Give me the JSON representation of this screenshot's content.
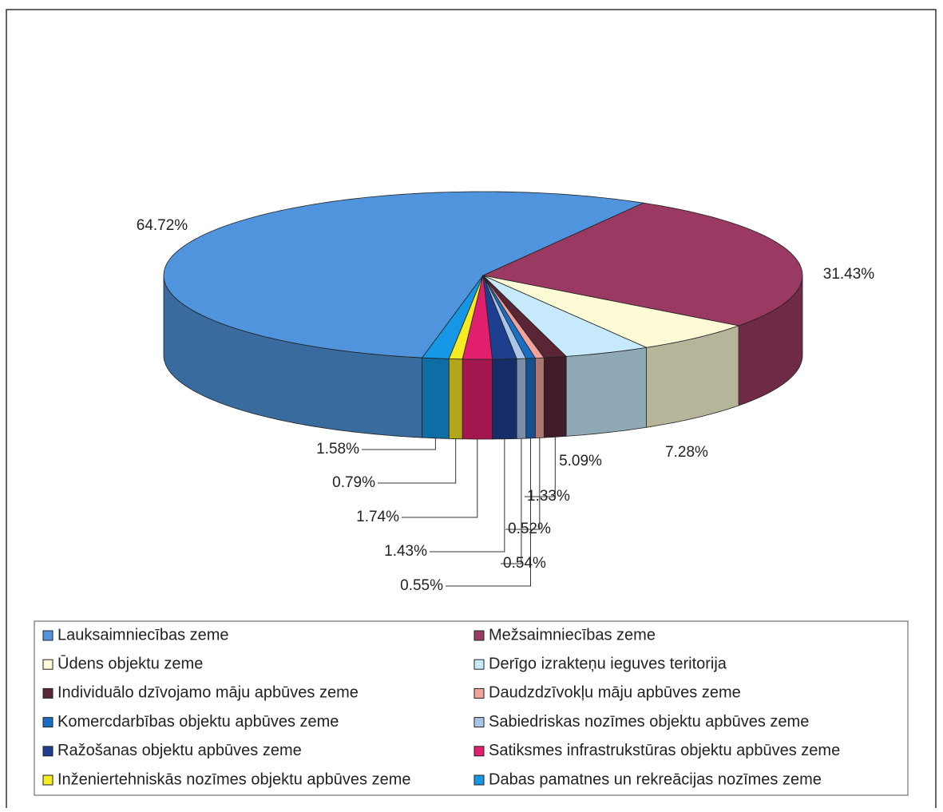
{
  "chart_data": {
    "type": "pie3d",
    "categories": [
      "Lauksaimniecības zeme",
      "Mežsaimniecības zeme",
      "Ūdens objektu zeme",
      "Derīgo izrakteņu ieguves teritorija",
      "Individuālo dzīvojamo māju apbūves zeme",
      "Daudzdzīvokļu māju apbūves zeme",
      "Komercdarbības objektu apbūves zeme",
      "Sabiedriskas nozīmes objektu apbūves zeme",
      "Ražošanas objektu apbūves zeme",
      "Satiksmes infrastrukstūras objektu apbūves zeme",
      "Inženiertehniskās nozīmes objektu apbūves zeme",
      "Dabas pamatnes un rekreācijas nozīmes zeme"
    ],
    "values": [
      64.72,
      31.43,
      7.28,
      5.09,
      1.33,
      0.52,
      0.55,
      0.54,
      1.43,
      1.74,
      0.79,
      1.58
    ],
    "value_labels": [
      "64.72%",
      "31.43%",
      "7.28%",
      "5.09%",
      "1.33%",
      "0.52%",
      "0.55%",
      "0.54%",
      "1.43%",
      "1.74%",
      "0.79%",
      "1.58%"
    ],
    "colors": [
      "#4f94dc",
      "#9a3a62",
      "#fdfbd6",
      "#c6e9fb",
      "#5a2535",
      "#f3a29c",
      "#1a6fc4",
      "#a9c6e8",
      "#1e3f8f",
      "#e21f6c",
      "#f6ea22",
      "#1597e5"
    ],
    "legend": "bottom"
  }
}
